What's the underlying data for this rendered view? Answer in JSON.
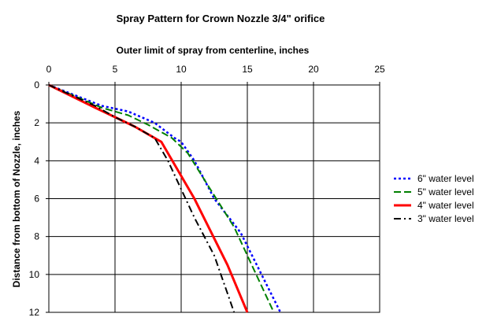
{
  "chart_data": {
    "type": "line",
    "title": "Spray Pattern for Crown Nozzle 3/4\" orifice",
    "xlabel": "Outer limit of spray from centerline, inches",
    "ylabel": "Distance from bottom of Nozzle, inches",
    "xlim": [
      0,
      25
    ],
    "ylim": [
      0,
      12
    ],
    "y_inverted": true,
    "x_axis_position": "top",
    "x_ticks": [
      "0",
      "5",
      "10",
      "15",
      "20",
      "25"
    ],
    "y_ticks": [
      "0",
      "2",
      "4",
      "6",
      "8",
      "10",
      "12"
    ],
    "grid": true,
    "legend_position": "right",
    "series": [
      {
        "name": "6\" water level",
        "color": "#0000ff",
        "style": "dotted",
        "points": [
          [
            0,
            0
          ],
          [
            4,
            1.1
          ],
          [
            6,
            1.4
          ],
          [
            8,
            2.0
          ],
          [
            9.5,
            2.8
          ],
          [
            10,
            3.0
          ],
          [
            11,
            4.0
          ],
          [
            12.5,
            6.0
          ],
          [
            14.5,
            7.8
          ],
          [
            17.5,
            12.0
          ]
        ]
      },
      {
        "name": "5\" water level",
        "color": "#008000",
        "style": "dashed",
        "points": [
          [
            0,
            0
          ],
          [
            4,
            1.2
          ],
          [
            6,
            1.6
          ],
          [
            7.5,
            2.1
          ],
          [
            9.3,
            2.8
          ],
          [
            10.5,
            3.6
          ],
          [
            12.2,
            5.5
          ],
          [
            14,
            7.5
          ],
          [
            17,
            12.0
          ]
        ]
      },
      {
        "name": "4\" water level",
        "color": "#ff0000",
        "style": "solid",
        "points": [
          [
            0,
            0
          ],
          [
            3.5,
            1.2
          ],
          [
            5,
            1.7
          ],
          [
            6.5,
            2.2
          ],
          [
            8.5,
            3.0
          ],
          [
            11,
            6.0
          ],
          [
            13.5,
            9.5
          ],
          [
            15,
            12.0
          ]
        ]
      },
      {
        "name": "3\" water level",
        "color": "#000000",
        "style": "dashdot",
        "points": [
          [
            0,
            0
          ],
          [
            3.5,
            1.1
          ],
          [
            5,
            1.7
          ],
          [
            6.5,
            2.2
          ],
          [
            8,
            2.8
          ],
          [
            9,
            4.0
          ],
          [
            11,
            7.0
          ],
          [
            12.5,
            9.0
          ],
          [
            14,
            12.0
          ]
        ]
      }
    ]
  }
}
